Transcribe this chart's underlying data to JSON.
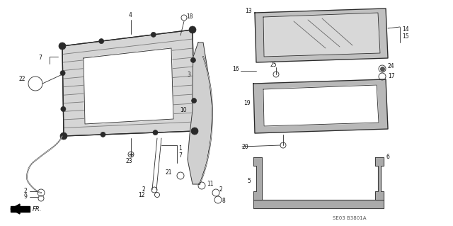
{
  "bg_color": "#ffffff",
  "diagram_code": "SE03 B3801A",
  "line_color": "#2a2a2a",
  "text_color": "#111111",
  "fig_width": 6.4,
  "fig_height": 3.19,
  "frame_hatch_color": "#888888",
  "glass_fill": "#c8c8c8",
  "seal_fill": "#aaaaaa"
}
